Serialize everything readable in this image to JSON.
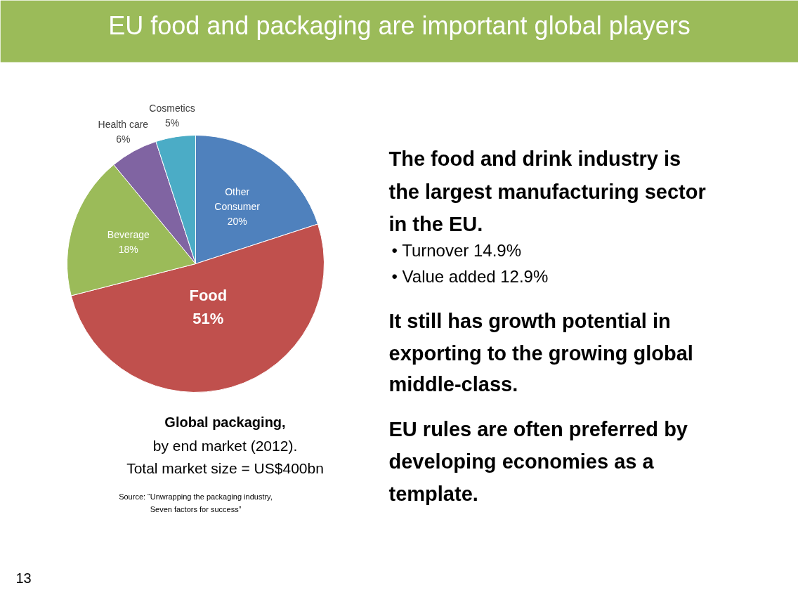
{
  "chart_data": {
    "type": "pie",
    "title": "EU food and packaging are important global players",
    "categories": [
      "Other Consumer",
      "Food",
      "Beverage",
      "Health care",
      "Cosmetics"
    ],
    "values": [
      20,
      51,
      18,
      6,
      5
    ],
    "value_labels": [
      "20%",
      "51%",
      "18%",
      "6%",
      "5%"
    ],
    "colors": [
      "#4f81bd",
      "#c0504d",
      "#9bbb59",
      "#8064a2",
      "#4bacc6"
    ],
    "legend": false,
    "annotations": [
      "Global packaging,",
      "by end market (2012).",
      "Total market size = US$400bn",
      "Source: “Unwrapping the packaging industry,",
      "Seven factors for success”",
      "The food and drink industry is",
      "the largest manufacturing sector",
      "in the EU.",
      "•  Turnover 14.9%",
      "•  Value added 12.9%",
      "It still has growth potential in",
      "exporting to the growing global",
      "middle-class.",
      "EU rules are often preferred by",
      "developing economies as a",
      "template.",
      "13"
    ]
  }
}
